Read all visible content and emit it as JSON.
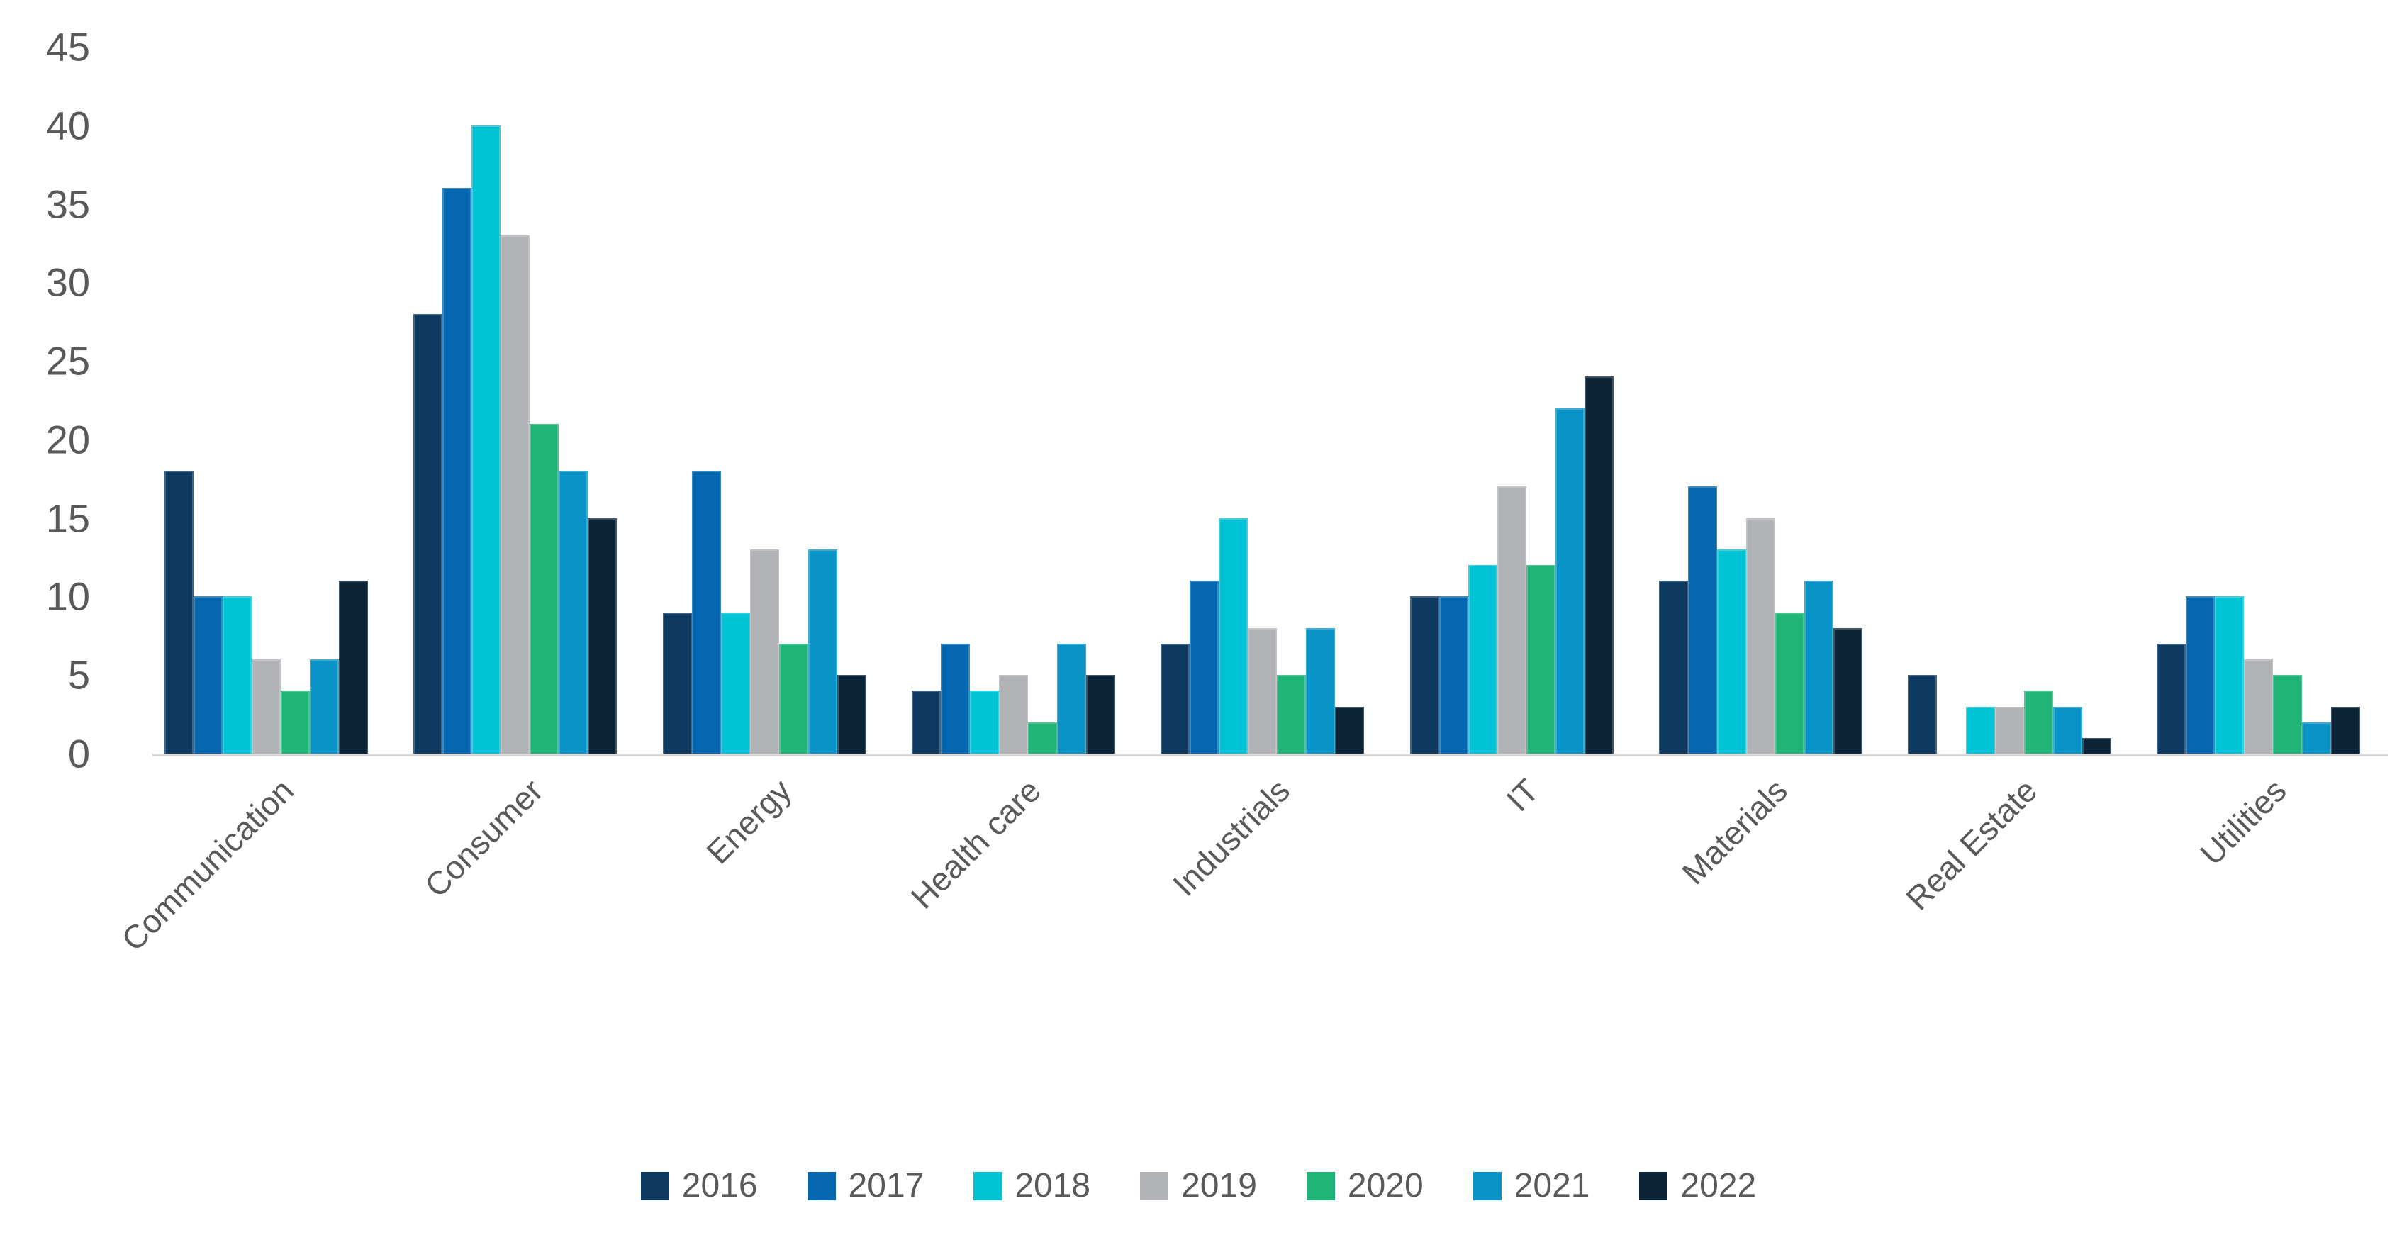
{
  "chart_data": {
    "type": "bar",
    "title": "",
    "xlabel": "",
    "ylabel": "",
    "categories": [
      "Communication",
      "Consumer",
      "Energy",
      "Health care",
      "Industrials",
      "IT",
      "Materials",
      "Real Estate",
      "Utilities"
    ],
    "series": [
      {
        "name": "2016",
        "color": "#0e3a61",
        "values": [
          18,
          28,
          9,
          4,
          7,
          10,
          11,
          5,
          7
        ]
      },
      {
        "name": "2017",
        "color": "#0667b1",
        "values": [
          10,
          36,
          18,
          7,
          11,
          10,
          17,
          0,
          10
        ]
      },
      {
        "name": "2018",
        "color": "#00c4d6",
        "values": [
          10,
          40,
          9,
          4,
          15,
          12,
          13,
          3,
          10
        ]
      },
      {
        "name": "2019",
        "color": "#b1b3b6",
        "values": [
          6,
          33,
          13,
          5,
          8,
          17,
          15,
          3,
          6
        ]
      },
      {
        "name": "2020",
        "color": "#20b479",
        "values": [
          4,
          21,
          7,
          2,
          5,
          12,
          9,
          4,
          5
        ]
      },
      {
        "name": "2021",
        "color": "#0993c6",
        "values": [
          6,
          18,
          13,
          7,
          8,
          22,
          11,
          3,
          2
        ]
      },
      {
        "name": "2022",
        "color": "#0b2438",
        "values": [
          11,
          15,
          5,
          5,
          3,
          24,
          8,
          1,
          3
        ]
      }
    ],
    "ylim": [
      0,
      45
    ],
    "ytick_step": 5,
    "ytick_labels": [
      "0",
      "5",
      "10",
      "15",
      "20",
      "25",
      "30",
      "35",
      "40",
      "45"
    ],
    "grid": false,
    "legend_position": "bottom",
    "axis_line_color": "#d9d9d9",
    "text_color": "#595959",
    "background": "#ffffff"
  }
}
